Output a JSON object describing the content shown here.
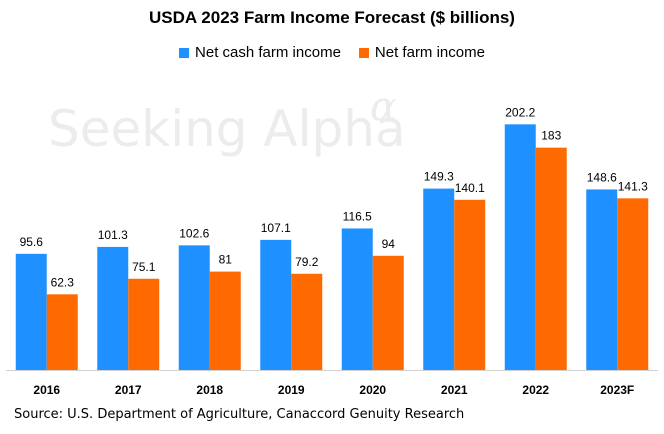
{
  "watermark": {
    "text": "Seeking Alpha",
    "symbol": "α"
  },
  "chart_data": {
    "type": "bar",
    "title": "USDA 2023 Farm Income Forecast ($ billions)",
    "xlabel": "",
    "ylabel": "",
    "categories": [
      "2016",
      "2017",
      "2018",
      "2019",
      "2020",
      "2021",
      "2022",
      "2023F"
    ],
    "series": [
      {
        "name": "Net cash farm income",
        "color": "#1e90ff",
        "values": [
          95.6,
          101.3,
          102.6,
          107.1,
          116.5,
          149.3,
          202.2,
          148.6
        ],
        "labels": [
          "95.6",
          "101.3",
          "102.6",
          "107.1",
          "116.5",
          "149.3",
          "202.2",
          "148.6"
        ]
      },
      {
        "name": "Net farm income",
        "color": "#ff6a00",
        "values": [
          62.3,
          75.1,
          81,
          79.2,
          94,
          140.1,
          183,
          141.3
        ],
        "labels": [
          "62.3",
          "75.1",
          "81",
          "79.2",
          "94",
          "140.1",
          "183",
          "141.3"
        ]
      }
    ],
    "ylim": [
      0,
      225
    ],
    "grid": false,
    "legend_position": "top-center",
    "source": "Source: U.S. Department of Agriculture, Canaccord Genuity Research"
  }
}
